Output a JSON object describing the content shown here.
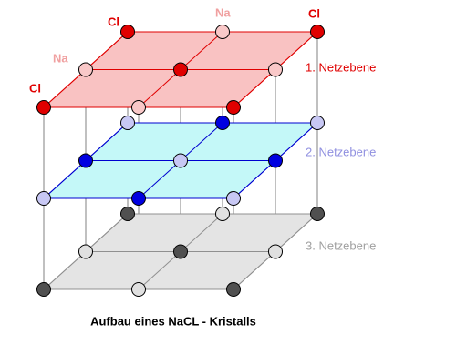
{
  "labels": {
    "cl_back_left": "Cl",
    "na_back": "Na",
    "cl_back_right": "Cl",
    "na_left": "Na",
    "cl_front_left": "Cl"
  },
  "planes": [
    "1. Netzebene",
    "2. Netzebene",
    "3. Netzebene"
  ],
  "caption": "Aufbau eines NaCL - Kristalls"
}
